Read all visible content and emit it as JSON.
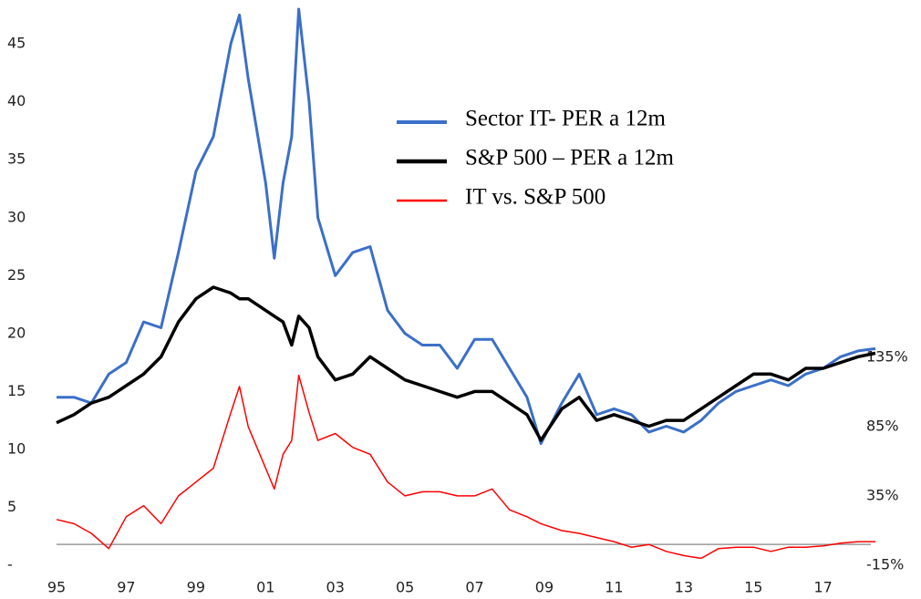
{
  "chart_data": {
    "type": "line",
    "legend": "upper right",
    "x": [
      1995,
      1995.5,
      1996,
      1996.5,
      1997,
      1997.5,
      1998,
      1998.5,
      1999,
      1999.5,
      2000,
      2000.25,
      2000.5,
      2001,
      2001.25,
      2001.5,
      2001.75,
      2001.95,
      2002.25,
      2002.5,
      2003,
      2003.5,
      2004,
      2004.5,
      2005,
      2005.5,
      2006,
      2006.5,
      2007,
      2007.5,
      2008,
      2008.5,
      2008.9,
      2009.5,
      2010,
      2010.5,
      2011,
      2011.5,
      2012,
      2012.5,
      2013,
      2013.5,
      2014,
      2014.5,
      2015,
      2015.5,
      2016,
      2016.5,
      2017,
      2017.5,
      2018,
      2018.5
    ],
    "series": [
      {
        "name": "Sector IT- PER a 12m",
        "color": "#3b6fc8",
        "width": 3,
        "values": [
          14.5,
          14.5,
          14,
          16.5,
          17.5,
          21,
          20.5,
          27,
          34,
          37,
          45,
          47.5,
          42,
          33,
          26.5,
          33,
          37,
          48,
          40,
          30,
          25,
          27,
          27.5,
          22,
          20,
          19,
          19,
          17,
          19.5,
          19.5,
          17,
          14.5,
          10.5,
          14,
          16.5,
          13,
          13.5,
          13,
          11.5,
          12,
          11.5,
          12.5,
          14,
          15,
          15.5,
          16,
          15.5,
          16.5,
          17,
          18,
          18.5,
          18.7
        ]
      },
      {
        "name": "S&P 500 – PER a 12m",
        "color": "#000000",
        "width": 3.5,
        "values": [
          12.3,
          13,
          14,
          14.5,
          15.5,
          16.5,
          18,
          21,
          23,
          24,
          23.5,
          23,
          23,
          22,
          21.5,
          21,
          19,
          21.5,
          20.5,
          18,
          16,
          16.5,
          18,
          17,
          16,
          15.5,
          15,
          14.5,
          15,
          15,
          14,
          13,
          10.8,
          13.5,
          14.5,
          12.5,
          13,
          12.5,
          12,
          12.5,
          12.5,
          13.5,
          14.5,
          15.5,
          16.5,
          16.5,
          16,
          17,
          17,
          17.5,
          18,
          18.3
        ]
      },
      {
        "name": "IT vs. S&P 500",
        "color": "#ff0000",
        "width": 1.5,
        "axis": "y2",
        "values": [
          18,
          15,
          8,
          -3,
          20,
          28,
          15,
          35,
          45,
          55,
          95,
          114,
          85,
          55,
          40,
          65,
          75,
          122,
          95,
          75,
          80,
          70,
          65,
          45,
          35,
          38,
          38,
          35,
          35,
          40,
          25,
          20,
          15,
          10,
          8,
          5,
          2,
          -2,
          0,
          -5,
          -8,
          -10,
          -3,
          -2,
          -2,
          -5,
          -2,
          -2,
          -1,
          1,
          2,
          2
        ]
      }
    ],
    "xlim": [
      1995,
      2018.5
    ],
    "xticks": [
      {
        "value": 1995,
        "label": "95"
      },
      {
        "value": 1997,
        "label": "97"
      },
      {
        "value": 1999,
        "label": "99"
      },
      {
        "value": 2001,
        "label": "01"
      },
      {
        "value": 2003,
        "label": "03"
      },
      {
        "value": 2005,
        "label": "05"
      },
      {
        "value": 2007,
        "label": "07"
      },
      {
        "value": 2009,
        "label": "09"
      },
      {
        "value": 2011,
        "label": "11"
      },
      {
        "value": 2013,
        "label": "13"
      },
      {
        "value": 2015,
        "label": "15"
      },
      {
        "value": 2017,
        "label": "17"
      }
    ],
    "ylim": [
      0,
      48
    ],
    "yticks": [
      {
        "value": 0,
        "label": "-"
      },
      5,
      10,
      15,
      20,
      25,
      30,
      35,
      40,
      45
    ],
    "y2lim": [
      -15,
      386
    ],
    "y2ticks": [
      {
        "value": -15,
        "label": "-15%"
      },
      {
        "value": 35,
        "label": "35%"
      },
      {
        "value": 85,
        "label": "85%"
      },
      {
        "value": 135,
        "label": "135%"
      }
    ],
    "y2_reference_line": 0
  }
}
